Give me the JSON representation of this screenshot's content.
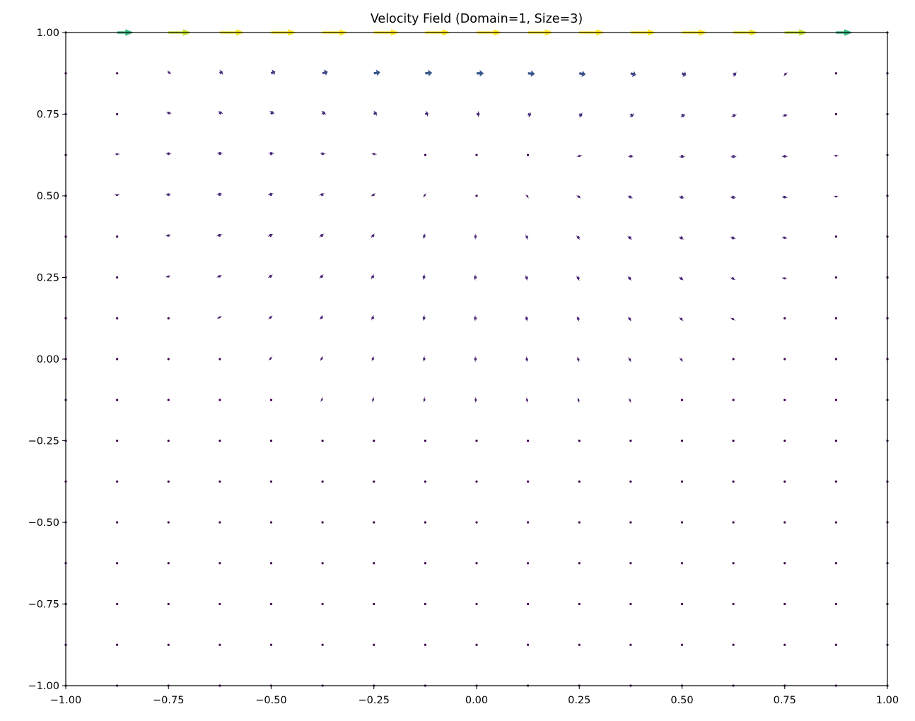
{
  "chart_data": {
    "type": "quiver",
    "title": "Velocity Field (Domain=1, Size=3)",
    "xlabel": "",
    "ylabel": "",
    "xlim": [
      -1.0,
      1.0
    ],
    "ylim": [
      -1.0,
      1.0
    ],
    "grid": false,
    "x_ticks": [
      "−1.00",
      "−0.75",
      "−0.50",
      "−0.25",
      "0.00",
      "0.25",
      "0.50",
      "0.75",
      "1.00"
    ],
    "y_ticks": [
      "−1.00",
      "−0.75",
      "−0.50",
      "−0.25",
      "0.00",
      "0.25",
      "0.50",
      "0.75",
      "1.00"
    ],
    "colormap": "viridis",
    "colormap_stops": [
      "#440154",
      "#482878",
      "#3e4989",
      "#31688e",
      "#26828e",
      "#1f9e89",
      "#35b779",
      "#6ece58",
      "#b5de2b",
      "#fde725"
    ],
    "grid_x": [
      -1.0,
      -0.875,
      -0.75,
      -0.625,
      -0.5,
      -0.375,
      -0.25,
      -0.125,
      0.0,
      0.125,
      0.25,
      0.375,
      0.5,
      0.625,
      0.75,
      0.875,
      1.0
    ],
    "grid_y": [
      -1.0,
      -0.875,
      -0.75,
      -0.625,
      -0.5,
      -0.375,
      -0.25,
      -0.125,
      0.0,
      0.125,
      0.25,
      0.375,
      0.5,
      0.625,
      0.75,
      0.875,
      1.0
    ],
    "lid_velocity": 1.0
  }
}
